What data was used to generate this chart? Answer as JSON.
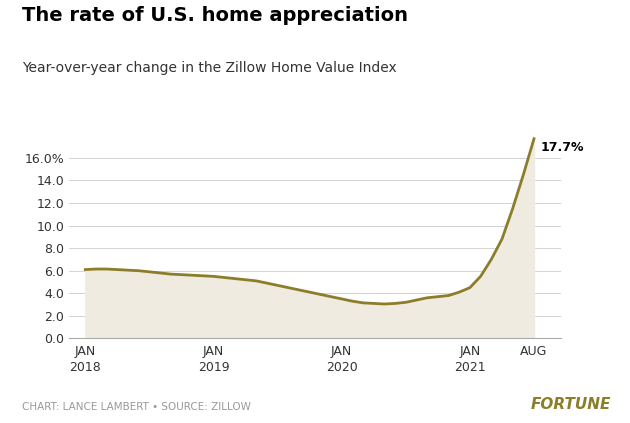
{
  "title": "The rate of U.S. home appreciation",
  "subtitle": "Year-over-year change in the Zillow Home Value Index",
  "footer": "CHART: LANCE LAMBERT • SOURCE: ZILLOW",
  "fortune_label": "FORTUNE",
  "line_color": "#8B7D2A",
  "fill_color": "#F0EBE0",
  "background_color": "#FFFFFF",
  "last_label": "17.7%",
  "yticks": [
    0.0,
    2.0,
    4.0,
    6.0,
    8.0,
    10.0,
    12.0,
    14.0,
    16.0
  ],
  "ytick_labels": [
    "0.0",
    "2.0",
    "4.0",
    "6.0",
    "8.0",
    "10.0",
    "12.0",
    "14.0",
    "16.0%"
  ],
  "ylim": [
    0,
    19.5
  ],
  "x_data": [
    0,
    1,
    2,
    3,
    4,
    5,
    6,
    7,
    8,
    9,
    10,
    11,
    12,
    13,
    14,
    15,
    16,
    17,
    18,
    19,
    20,
    21,
    22,
    23,
    24,
    25,
    26,
    27,
    28,
    29,
    30,
    31,
    32,
    33,
    34,
    35,
    36,
    37,
    38,
    39,
    40,
    41,
    42
  ],
  "y_data": [
    6.1,
    6.15,
    6.15,
    6.1,
    6.05,
    6.0,
    5.9,
    5.8,
    5.7,
    5.65,
    5.6,
    5.55,
    5.5,
    5.4,
    5.3,
    5.2,
    5.1,
    4.9,
    4.7,
    4.5,
    4.3,
    4.1,
    3.9,
    3.7,
    3.5,
    3.3,
    3.15,
    3.1,
    3.05,
    3.1,
    3.2,
    3.4,
    3.6,
    3.7,
    3.8,
    4.1,
    4.5,
    5.5,
    7.0,
    8.8,
    11.5,
    14.5,
    17.7
  ],
  "xtick_positions": [
    0,
    12,
    24,
    36,
    42
  ],
  "xtick_labels": [
    "JAN\n2018",
    "JAN\n2019",
    "JAN\n2020",
    "JAN\n2021",
    "AUG"
  ],
  "grid_color": "#CCCCCC",
  "title_fontsize": 14,
  "subtitle_fontsize": 10,
  "tick_fontsize": 9,
  "footer_fontsize": 7.5
}
